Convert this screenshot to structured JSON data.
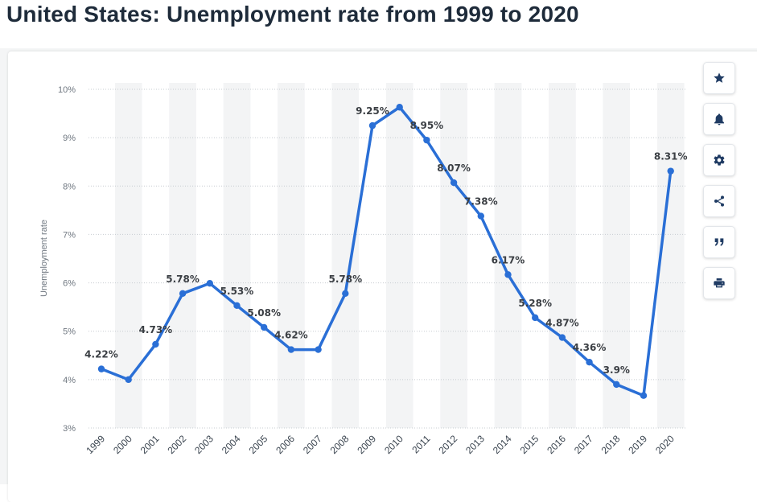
{
  "page": {
    "title": "United States: Unemployment rate from 1999 to 2020"
  },
  "colors": {
    "line": "#2a6fd6",
    "band": "#f3f4f5",
    "grid": "#c7ccd1",
    "icon": "#1f3b63"
  },
  "toolbar": {
    "buttons": [
      {
        "name": "favorite-button",
        "icon": "star-icon"
      },
      {
        "name": "notification-button",
        "icon": "bell-icon"
      },
      {
        "name": "settings-button",
        "icon": "gear-icon"
      },
      {
        "name": "share-button",
        "icon": "share-icon"
      },
      {
        "name": "cite-button",
        "icon": "quote-icon"
      },
      {
        "name": "print-button",
        "icon": "print-icon"
      }
    ]
  },
  "chart_data": {
    "type": "line",
    "title": "",
    "xlabel": "",
    "ylabel": "Unemployment rate",
    "ylim": [
      3,
      10
    ],
    "yticks": [
      "3%",
      "4%",
      "5%",
      "6%",
      "7%",
      "8%",
      "9%",
      "10%"
    ],
    "grid": true,
    "categories": [
      "1999",
      "2000",
      "2001",
      "2002",
      "2003",
      "2004",
      "2005",
      "2006",
      "2007",
      "2008",
      "2009",
      "2010",
      "2011",
      "2012",
      "2013",
      "2014",
      "2015",
      "2016",
      "2017",
      "2018",
      "2019",
      "2020"
    ],
    "values": [
      4.22,
      4.0,
      4.73,
      5.78,
      5.99,
      5.53,
      5.08,
      4.62,
      4.62,
      5.78,
      9.25,
      9.63,
      8.95,
      8.07,
      7.38,
      6.17,
      5.28,
      4.87,
      4.36,
      3.9,
      3.67,
      8.31
    ],
    "data_labels": [
      "4.22%",
      "",
      "4.73%",
      "5.78%",
      "",
      "5.53%",
      "5.08%",
      "4.62%",
      "",
      "5.78%",
      "9.25%",
      "",
      "8.95%",
      "8.07%",
      "7.38%",
      "6.17%",
      "5.28%",
      "4.87%",
      "4.36%",
      "3.9%",
      "",
      "8.31%"
    ]
  }
}
